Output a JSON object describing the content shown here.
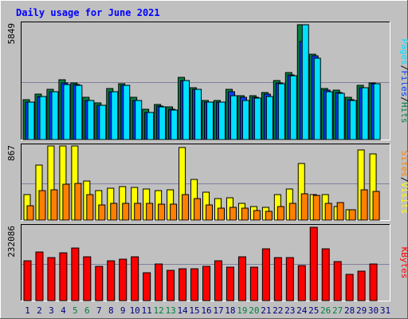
{
  "title": "Daily usage for June 2021",
  "colors": {
    "background": "#c0c0c0",
    "title": "#0000ff",
    "hits": "#008040",
    "files": "#0040ff",
    "pages": "#00e0ff",
    "visits": "#ffff00",
    "sites": "#ff8000",
    "kbytes": "#ff0000",
    "grid": "#8080a0",
    "weekend_label": "#008040",
    "weekday_label": "#000080"
  },
  "chart_data": {
    "type": "bar",
    "days": [
      "1",
      "2",
      "3",
      "4",
      "5",
      "6",
      "7",
      "8",
      "9",
      "10",
      "11",
      "12",
      "13",
      "14",
      "15",
      "16",
      "17",
      "18",
      "19",
      "20",
      "21",
      "22",
      "23",
      "24",
      "25",
      "26",
      "27",
      "28",
      "29",
      "30",
      "31"
    ],
    "weekend_days": [
      "5",
      "6",
      "12",
      "13",
      "19",
      "20",
      "26",
      "27"
    ],
    "panels": [
      {
        "id": "hits",
        "ymax_label": "5849",
        "ymax": 5849,
        "legend": [
          "Pages",
          "/",
          "Files",
          "/",
          "Hits"
        ],
        "series": [
          {
            "name": "Hits",
            "values": [
              2050,
              2300,
              2550,
              3050,
              2900,
              2150,
              1850,
              2600,
              2850,
              2150,
              1550,
              1800,
              1650,
              3150,
              2650,
              2000,
              2000,
              2550,
              2250,
              2250,
              2400,
              3000,
              3400,
              5849,
              4350,
              2600,
              2500,
              2150,
              2750,
              2900,
              0
            ]
          },
          {
            "name": "Files",
            "values": [
              1900,
              2200,
              2450,
              2900,
              2800,
              2000,
              1750,
              2450,
              2750,
              2000,
              1400,
              1700,
              1550,
              3000,
              2550,
              1900,
              1900,
              2450,
              2150,
              2150,
              2300,
              2900,
              3300,
              5000,
              4250,
              2500,
              2400,
              2050,
              2650,
              2850,
              0
            ]
          },
          {
            "name": "Pages",
            "values": [
              1900,
              2200,
              2450,
              2800,
              2750,
              2000,
              1750,
              2450,
              2750,
              2000,
              1400,
              1650,
              1500,
              3000,
              2550,
              1900,
              1900,
              2250,
              2000,
              2100,
              2200,
              2850,
              3250,
              5849,
              4150,
              2450,
              2350,
              2000,
              2650,
              2850,
              0
            ]
          }
        ]
      },
      {
        "id": "visits",
        "ymax_label": "867",
        "ymax": 867,
        "legend": [
          "Sites",
          "/",
          "Visits"
        ],
        "series": [
          {
            "name": "Visits",
            "values": [
              300,
              650,
              880,
              880,
              880,
              460,
              350,
              380,
              400,
              390,
              370,
              350,
              360,
              860,
              480,
              330,
              250,
              260,
              200,
              160,
              150,
              300,
              370,
              670,
              300,
              300,
              160,
              120,
              830,
              780,
              0
            ]
          },
          {
            "name": "Sites",
            "values": [
              170,
              350,
              360,
              420,
              430,
              300,
              180,
              200,
              200,
              200,
              200,
              190,
              190,
              300,
              250,
              180,
              140,
              150,
              140,
              110,
              100,
              160,
              200,
              310,
              290,
              200,
              210,
              120,
              360,
              340,
              0
            ]
          }
        ]
      },
      {
        "id": "kbytes",
        "ymax_label": "232086",
        "ymax": 232086,
        "legend": [
          "KBytes"
        ],
        "series": [
          {
            "name": "KBytes",
            "values": [
              127000,
              155000,
              136000,
              152000,
              166000,
              138000,
              109000,
              125000,
              130000,
              138000,
              88000,
              117000,
              96000,
              100000,
              100000,
              109000,
              127000,
              105000,
              138000,
              105000,
              164000,
              136000,
              136000,
              110000,
              232086,
              164000,
              123000,
              82000,
              94000,
              115000,
              0
            ]
          }
        ]
      }
    ]
  }
}
